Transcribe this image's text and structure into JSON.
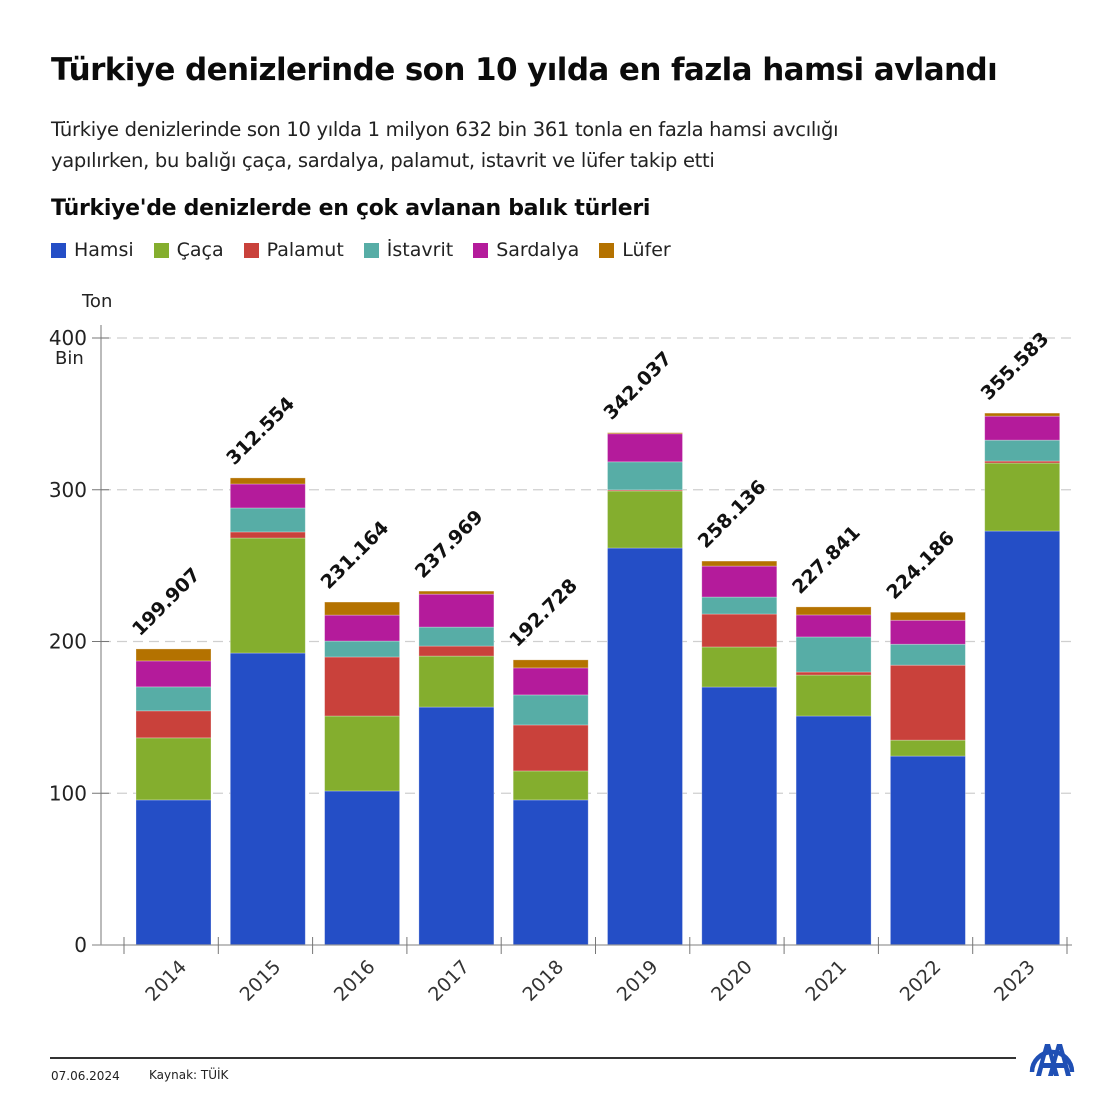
{
  "header": {
    "title": "Türkiye denizlerinde son 10 yılda en fazla hamsi avlandı",
    "subtitle_line1": "Türkiye denizlerinde son 10 yılda 1 milyon 632 bin 361 tonla en fazla hamsi avcılığı",
    "subtitle_line2": "yapılırken, bu balığı çaça, sardalya, palamut, istavrit ve lüfer takip etti"
  },
  "footer": {
    "date": "07.06.2024",
    "source": "Kaynak: TÜİK",
    "logo": "aa-logo-icon"
  },
  "chart_data": {
    "type": "bar",
    "stacked": true,
    "title": "Türkiye'de denizlerde en çok avlanan balık türleri",
    "xlabel": "",
    "ylabel": "Ton",
    "yunit_label": "Bin",
    "ylim": [
      0,
      400
    ],
    "yticks": [
      0,
      100,
      200,
      300,
      400
    ],
    "grid": true,
    "legend_position": "top-left",
    "categories": [
      "2014",
      "2015",
      "2016",
      "2017",
      "2018",
      "2019",
      "2020",
      "2021",
      "2022",
      "2023"
    ],
    "totals_labels": [
      "199.907",
      "312.554",
      "231.164",
      "237.969",
      "192.728",
      "342.037",
      "258.136",
      "227.841",
      "224.186",
      "355.583"
    ],
    "series": [
      {
        "name": "Hamsi",
        "color": "#244ec6",
        "values": [
          95.6,
          192.4,
          101.5,
          156.8,
          95.6,
          261.6,
          170.0,
          150.9,
          124.5,
          272.8
        ]
      },
      {
        "name": "Çaça",
        "color": "#84ae2e",
        "values": [
          40.9,
          75.8,
          49.4,
          33.6,
          19.1,
          37.6,
          26.4,
          27.0,
          10.5,
          44.8
        ]
      },
      {
        "name": "Palamut",
        "color": "#c9413b",
        "values": [
          17.8,
          4.0,
          38.9,
          6.6,
          30.3,
          0.7,
          21.7,
          2.0,
          49.4,
          1.3
        ]
      },
      {
        "name": "İstavrit",
        "color": "#57ada6",
        "values": [
          15.8,
          15.8,
          10.5,
          12.5,
          19.8,
          18.5,
          11.2,
          23.1,
          13.8,
          13.8
        ]
      },
      {
        "name": "Sardalya",
        "color": "#b41b9b",
        "values": [
          17.1,
          15.8,
          17.1,
          21.7,
          17.8,
          18.5,
          20.4,
          14.5,
          15.8,
          15.8
        ]
      },
      {
        "name": "Lüfer",
        "color": "#b47200",
        "values": [
          7.9,
          4.0,
          8.6,
          2.0,
          5.3,
          0.7,
          3.3,
          5.3,
          5.3,
          2.0
        ]
      }
    ]
  }
}
